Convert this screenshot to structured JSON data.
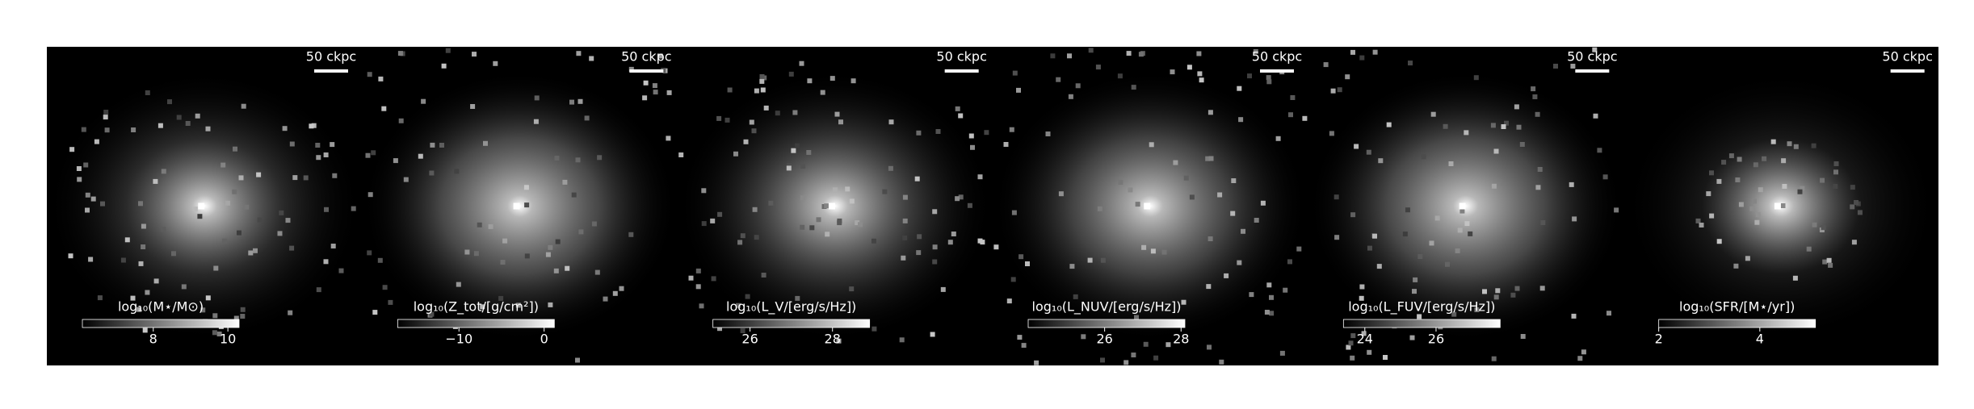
{
  "panels": [
    {
      "scale_label": "50 ckpc",
      "colorbar": {
        "label": "log₁₀(M⋆/M⊙)",
        "lim": [
          6.1,
          10.3
        ],
        "ticks": [
          8,
          10
        ]
      }
    },
    {
      "scale_label": "50 ckpc",
      "colorbar": {
        "label": "log₁₀(Z_tot/[g/cm²])",
        "lim": [
          -17.2,
          1.2
        ],
        "ticks": [
          {
            "value": -10,
            "label": "−10"
          },
          0
        ]
      }
    },
    {
      "scale_label": "50 ckpc",
      "colorbar": {
        "label": "log₁₀(L_V/[erg/s/Hz])",
        "lim": [
          25.1,
          28.9
        ],
        "ticks": [
          26,
          28
        ]
      }
    },
    {
      "scale_label": "50 ckpc",
      "colorbar": {
        "label": "log₁₀(L_NUV/[erg/s/Hz])",
        "lim": [
          24.0,
          28.1
        ],
        "ticks": [
          26,
          28
        ]
      }
    },
    {
      "scale_label": "50 ckpc",
      "colorbar": {
        "label": "log₁₀(L_FUV/[erg/s/Hz])",
        "lim": [
          23.4,
          27.8
        ],
        "ticks": [
          24,
          26
        ]
      }
    },
    {
      "scale_label": "50 ckpc",
      "colorbar": {
        "label": "log₁₀(SFR/[M⋆/yr])",
        "lim": [
          2,
          5.1
        ],
        "ticks": [
          2,
          4
        ]
      }
    }
  ]
}
